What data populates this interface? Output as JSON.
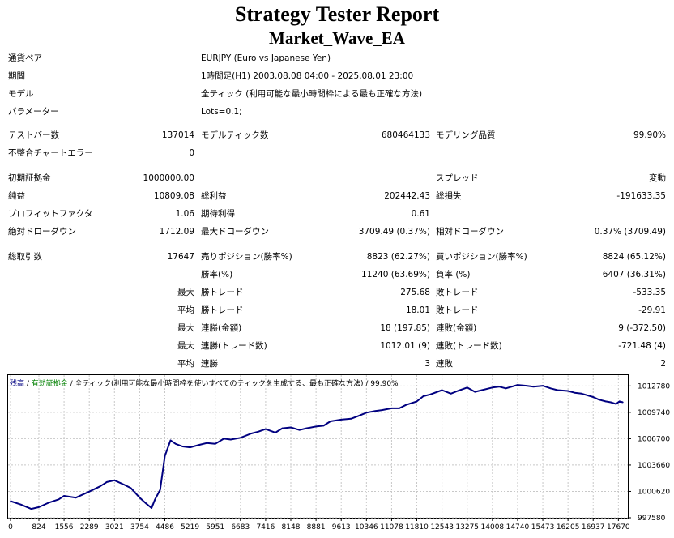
{
  "report": {
    "title": "Strategy Tester Report",
    "ea_name": "Market_Wave_EA"
  },
  "settings": [
    {
      "label": "通貨ペア",
      "value": "EURJPY (Euro vs Japanese Yen)"
    },
    {
      "label": "期間",
      "value": "1時間足(H1) 2003.08.08 04:00 - 2025.08.01 23:00"
    },
    {
      "label": "モデル",
      "value": "全ティック (利用可能な最小時間枠による最も正確な方法)"
    },
    {
      "label": "パラメーター",
      "value": "Lots=0.1;"
    }
  ],
  "stats": {
    "bars_label": "テストバー数",
    "bars_value": "137014",
    "ticks_label": "モデルティック数",
    "ticks_value": "680464133",
    "quality_label": "モデリング品質",
    "quality_value": "99.90%",
    "mismatch_label": "不整合チャートエラー",
    "mismatch_value": "0",
    "deposit_label": "初期証拠金",
    "deposit_value": "1000000.00",
    "spread_label": "スプレッド",
    "spread_value": "変動",
    "net_label": "純益",
    "net_value": "10809.08",
    "gross_profit_label": "総利益",
    "gross_profit_value": "202442.43",
    "gross_loss_label": "総損失",
    "gross_loss_value": "-191633.35",
    "pf_label": "プロフィットファクタ",
    "pf_value": "1.06",
    "expected_label": "期待利得",
    "expected_value": "0.61",
    "abs_dd_label": "絶対ドローダウン",
    "abs_dd_value": "1712.09",
    "max_dd_label": "最大ドローダウン",
    "max_dd_value": "3709.49 (0.37%)",
    "rel_dd_label": "相対ドローダウン",
    "rel_dd_value": "0.37% (3709.49)",
    "trades_label": "総取引数",
    "trades_value": "17647",
    "short_label": "売りポジション(勝率%)",
    "short_value": "8823 (62.27%)",
    "long_label": "買いポジション(勝率%)",
    "long_value": "8824 (65.12%)",
    "win_rate_label": "勝率(%)",
    "win_rate_value": "11240 (63.69%)",
    "loss_rate_label": "負率 (%)",
    "loss_rate_value": "6407 (36.31%)",
    "largest_label": "最大",
    "largest_win_label": "勝トレード",
    "largest_win_value": "275.68",
    "largest_loss_label": "敗トレード",
    "largest_loss_value": "-533.35",
    "average_label": "平均",
    "avg_win_label": "勝トレード",
    "avg_win_value": "18.01",
    "avg_loss_label": "敗トレード",
    "avg_loss_value": "-29.91",
    "max_cons_label": "最大",
    "max_cons_win_label": "連勝(金額)",
    "max_cons_win_value": "18 (197.85)",
    "max_cons_loss_label": "連敗(金額)",
    "max_cons_loss_value": "9 (-372.50)",
    "max_cons2_label": "最大",
    "max_cons_profit_label": "連勝(トレード数)",
    "max_cons_profit_value": "1012.01 (9)",
    "max_cons_lossamt_label": "連敗(トレード数)",
    "max_cons_lossamt_value": "-721.48 (4)",
    "avg_cons_label": "平均",
    "avg_cons_win_label": "連勝",
    "avg_cons_win_value": "3",
    "avg_cons_loss_label": "連敗",
    "avg_cons_loss_value": "2"
  },
  "chart_header": {
    "balance": "残高",
    "sep1": " / ",
    "equity": "有効証拠金",
    "sep2": " / ",
    "model": "全ティック(利用可能な最小時間枠を使いすべてのティックを生成する、最も正確な方法)",
    "sep3": " / ",
    "quality": "99.90%"
  },
  "colors": {
    "balance_line": "#000080",
    "grid": "#c8c8c8"
  },
  "chart_data": {
    "type": "line",
    "title": "",
    "xlabel": "",
    "ylabel": "",
    "x_ticks": [
      0,
      824,
      1556,
      2289,
      3021,
      3754,
      4486,
      5219,
      5951,
      6683,
      7416,
      8148,
      8881,
      9613,
      10346,
      11078,
      11810,
      12543,
      13275,
      14008,
      14740,
      15473,
      16205,
      16937,
      17670
    ],
    "y_ticks": [
      997580,
      1000620,
      1003660,
      1006700,
      1009740,
      1012780
    ],
    "xlim": [
      0,
      17850
    ],
    "ylim": [
      997580,
      1014120
    ],
    "series": [
      {
        "name": "残高",
        "x": [
          0,
          300,
          600,
          824,
          1100,
          1400,
          1556,
          1900,
          2289,
          2600,
          2800,
          3021,
          3300,
          3500,
          3754,
          3950,
          4100,
          4200,
          4350,
          4486,
          4650,
          4800,
          5000,
          5219,
          5500,
          5700,
          5951,
          6200,
          6400,
          6683,
          7000,
          7200,
          7416,
          7700,
          7900,
          8148,
          8400,
          8600,
          8881,
          9100,
          9300,
          9613,
          9900,
          10100,
          10346,
          10600,
          10800,
          11078,
          11300,
          11500,
          11810,
          12000,
          12200,
          12543,
          12800,
          13000,
          13275,
          13500,
          13700,
          14008,
          14200,
          14400,
          14740,
          15000,
          15200,
          15473,
          15700,
          15900,
          16205,
          16400,
          16600,
          16937,
          17100,
          17300,
          17450,
          17600,
          17700,
          17800
        ],
        "values": [
          999500,
          999100,
          998600,
          998800,
          999300,
          999700,
          1000100,
          999900,
          1000600,
          1001200,
          1001700,
          1001900,
          1001400,
          1001000,
          999900,
          999200,
          998700,
          999700,
          1000800,
          1004700,
          1006500,
          1006100,
          1005800,
          1005700,
          1006000,
          1006200,
          1006100,
          1006700,
          1006600,
          1006800,
          1007300,
          1007500,
          1007800,
          1007400,
          1007900,
          1008000,
          1007700,
          1007900,
          1008100,
          1008200,
          1008700,
          1008900,
          1009000,
          1009300,
          1009700,
          1009900,
          1010000,
          1010200,
          1010200,
          1010600,
          1011000,
          1011600,
          1011800,
          1012300,
          1011900,
          1012200,
          1012600,
          1012100,
          1012300,
          1012600,
          1012700,
          1012500,
          1012900,
          1012800,
          1012700,
          1012800,
          1012500,
          1012300,
          1012200,
          1012000,
          1011900,
          1011500,
          1011200,
          1011000,
          1010900,
          1010700,
          1011000,
          1010900
        ]
      }
    ]
  }
}
